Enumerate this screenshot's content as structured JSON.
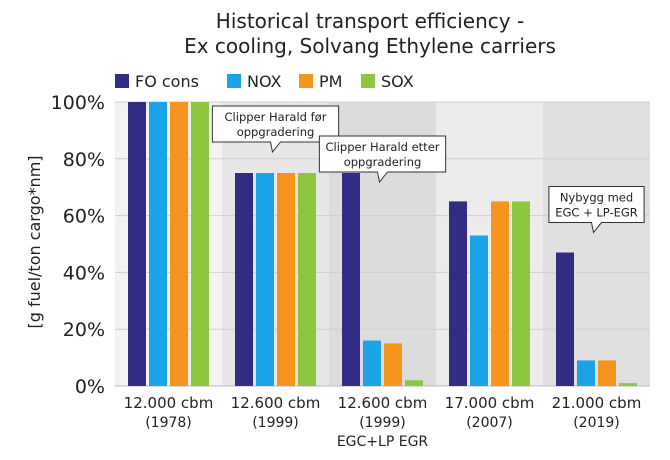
{
  "chart_data": {
    "type": "bar",
    "title": [
      "Historical transport efficiency -",
      "Ex cooling, Solvang Ethylene carriers"
    ],
    "ylabel": "[g fuel/ton cargo*nm]",
    "xlabel": "",
    "ylim": [
      0,
      100
    ],
    "yticks": [
      0,
      20,
      40,
      60,
      80,
      100
    ],
    "ytick_labels": [
      "0%",
      "20%",
      "40%",
      "60%",
      "80%",
      "100%"
    ],
    "grid": true,
    "legend_position": "top-left",
    "categories": [
      [
        "12.000 cbm",
        "(1978)"
      ],
      [
        "12.600 cbm",
        "(1999)"
      ],
      [
        "12.600 cbm",
        "(1999)",
        "EGC+LP EGR"
      ],
      [
        "17.000 cbm",
        "(2007)"
      ],
      [
        "21.000 cbm",
        "(2019)"
      ]
    ],
    "series": [
      {
        "name": "FO cons",
        "color": "#312c84",
        "values": [
          100,
          75,
          75,
          65,
          47
        ]
      },
      {
        "name": "NOX",
        "color": "#1ba3e8",
        "values": [
          100,
          75,
          16,
          53,
          9
        ]
      },
      {
        "name": "PM",
        "color": "#f7941d",
        "values": [
          100,
          75,
          15,
          65,
          9
        ]
      },
      {
        "name": "SOX",
        "color": "#8dc63f",
        "values": [
          100,
          75,
          2,
          65,
          1
        ]
      }
    ],
    "annotations": [
      {
        "category_index": 1,
        "lines": [
          "Clipper Harald før",
          "oppgradering"
        ]
      },
      {
        "category_index": 2,
        "lines": [
          "Clipper Harald etter",
          "oppgradering"
        ]
      },
      {
        "category_index": 4,
        "lines": [
          "Nybygg  med",
          "EGC + LP-EGR"
        ]
      }
    ],
    "band_colors": [
      "#f3f3f3",
      "#e7e7e7",
      "#dcdcdc",
      "#ececec",
      "#e0e0e0"
    ]
  }
}
